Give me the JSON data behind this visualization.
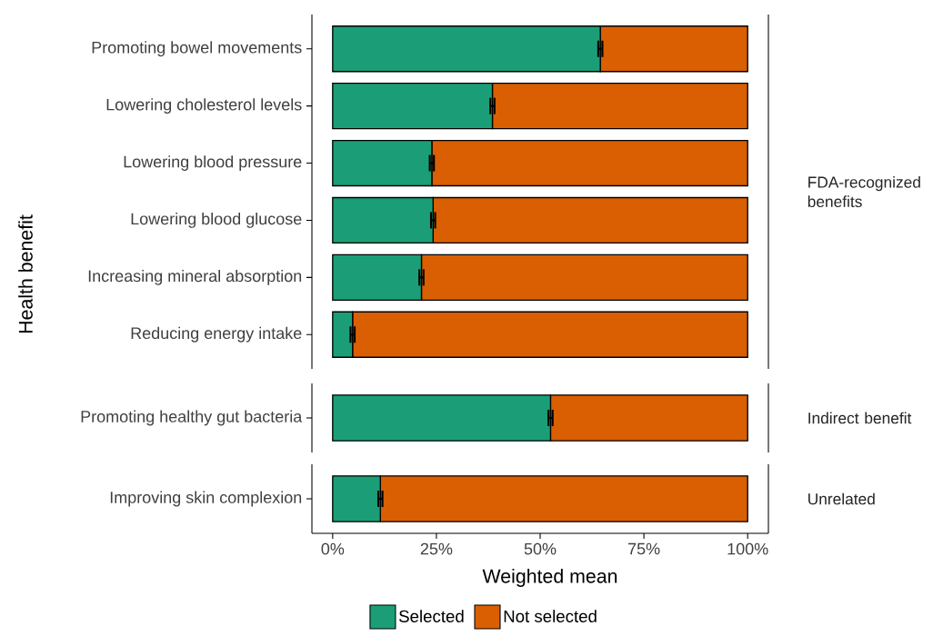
{
  "chart_data": [
    {
      "type": "bar",
      "orientation": "horizontal",
      "stacked": true,
      "annotations": [
        "FDA-recognized benefits"
      ],
      "ylabel": "Health benefit",
      "categories": [
        "Promoting bowel movements",
        "Lowering cholesterol levels",
        "Lowering blood pressure",
        "Lowering blood glucose",
        "Increasing mineral absorption",
        "Reducing energy intake"
      ],
      "series": [
        {
          "color": "#1b9e77",
          "values": [
            64.5,
            38.5,
            23.9,
            24.2,
            21.4,
            4.8
          ],
          "errors": [
            0.5,
            0.5,
            0.5,
            0.5,
            0.5,
            0.5
          ]
        },
        {
          "color": "#d95f02",
          "values": [
            35.5,
            61.5,
            76.1,
            75.8,
            78.6,
            95.2
          ]
        }
      ],
      "xlim": [
        -5,
        105
      ],
      "tick_labels": "y"
    },
    {
      "type": "bar",
      "orientation": "horizontal",
      "stacked": true,
      "annotations": [
        "Indirect benefit"
      ],
      "categories": [
        "Promoting healthy gut bacteria"
      ],
      "series": [
        {
          "color": "#1b9e77",
          "values": [
            52.5
          ],
          "errors": [
            0.5
          ]
        },
        {
          "color": "#d95f02",
          "values": [
            47.5
          ]
        }
      ],
      "xlim": [
        -5,
        105
      ],
      "tick_labels": "y"
    },
    {
      "type": "bar",
      "orientation": "horizontal",
      "stacked": true,
      "annotations": [
        "Unrelated"
      ],
      "xlabel": "Weighted mean",
      "categories": [
        "Improving skin complexion"
      ],
      "series": [
        {
          "name": "Selected",
          "color": "#1b9e77",
          "values": [
            11.5
          ],
          "errors": [
            0.5
          ]
        },
        {
          "name": "Not selected",
          "color": "#d95f02",
          "values": [
            88.5
          ]
        }
      ],
      "xlim": [
        -5,
        105
      ],
      "xticks": [
        {
          "value": 0,
          "label": "0%"
        },
        {
          "value": 25,
          "label": "25%"
        },
        {
          "value": 50,
          "label": "50%"
        },
        {
          "value": 75,
          "label": "75%"
        },
        {
          "value": 100,
          "label": "100%"
        }
      ],
      "legend": "bottom"
    }
  ]
}
